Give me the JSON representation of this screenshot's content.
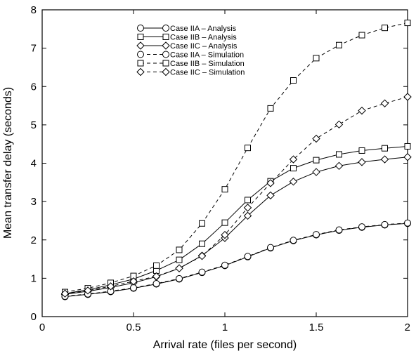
{
  "chart_data": {
    "type": "line",
    "title": "",
    "xlabel": "Arrival rate (files per second)",
    "ylabel": "Mean transfer delay (seconds)",
    "xlim": [
      0,
      2
    ],
    "ylim": [
      0,
      8
    ],
    "x_ticks": [
      "0",
      "0.5",
      "1",
      "1.5",
      "2"
    ],
    "y_ticks": [
      "0",
      "1",
      "2",
      "3",
      "4",
      "5",
      "6",
      "7",
      "8"
    ],
    "grid": false,
    "legend_position": "top-center",
    "x": [
      0.125,
      0.25,
      0.375,
      0.5,
      0.625,
      0.75,
      0.875,
      1.0,
      1.125,
      1.25,
      1.375,
      1.5,
      1.625,
      1.75,
      1.875,
      2.0
    ],
    "series": [
      {
        "name": "Case IIA – Analysis",
        "marker": "circle",
        "dash": "solid",
        "values": [
          0.52,
          0.58,
          0.65,
          0.74,
          0.85,
          0.98,
          1.15,
          1.33,
          1.56,
          1.79,
          1.98,
          2.13,
          2.25,
          2.33,
          2.39,
          2.43
        ]
      },
      {
        "name": "Case IIB – Analysis",
        "marker": "square",
        "dash": "solid",
        "values": [
          0.6,
          0.7,
          0.83,
          0.98,
          1.2,
          1.48,
          1.9,
          2.45,
          3.04,
          3.53,
          3.87,
          4.08,
          4.23,
          4.33,
          4.39,
          4.44
        ]
      },
      {
        "name": "Case IIC – Analysis",
        "marker": "diamond",
        "dash": "solid",
        "values": [
          0.58,
          0.66,
          0.76,
          0.88,
          1.04,
          1.26,
          1.59,
          2.05,
          2.63,
          3.16,
          3.52,
          3.77,
          3.93,
          4.03,
          4.1,
          4.16
        ]
      },
      {
        "name": "Case IIA – Simulation",
        "marker": "circle",
        "dash": "dashed",
        "values": [
          0.53,
          0.59,
          0.66,
          0.75,
          0.86,
          0.99,
          1.16,
          1.34,
          1.57,
          1.8,
          1.99,
          2.14,
          2.26,
          2.34,
          2.4,
          2.44
        ]
      },
      {
        "name": "Case IIB – Simulation",
        "marker": "square",
        "dash": "dashed",
        "values": [
          0.64,
          0.74,
          0.88,
          1.06,
          1.33,
          1.74,
          2.43,
          3.32,
          4.4,
          5.43,
          6.16,
          6.74,
          7.08,
          7.34,
          7.53,
          7.66
        ]
      },
      {
        "name": "Case IIC – Simulation",
        "marker": "diamond",
        "dash": "dashed",
        "values": [
          0.6,
          0.68,
          0.79,
          0.92,
          1.05,
          1.26,
          1.58,
          2.13,
          2.84,
          3.48,
          4.1,
          4.64,
          5.01,
          5.37,
          5.56,
          5.73
        ]
      }
    ]
  }
}
